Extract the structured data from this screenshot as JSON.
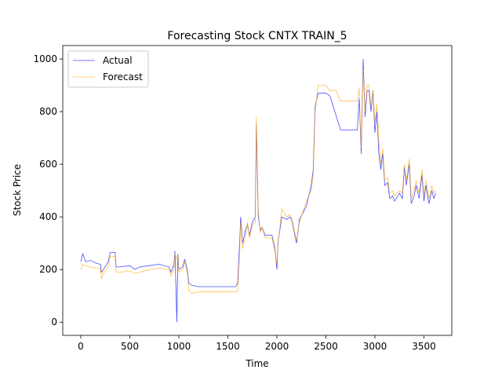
{
  "chart_data": {
    "type": "line",
    "title": "Forecasting Stock CNTX TRAIN_5",
    "xlabel": "Time",
    "ylabel": "Stock Price",
    "xlim": [
      -184,
      3784
    ],
    "ylim": [
      -50,
      1051
    ],
    "xticks": [
      0,
      500,
      1000,
      1500,
      2000,
      2500,
      3000,
      3500
    ],
    "yticks": [
      0,
      200,
      400,
      600,
      800,
      1000
    ],
    "legend": "upper left",
    "series": [
      {
        "name": "Actual",
        "color": "#0000ff",
        "x": [
          0,
          20,
          50,
          100,
          150,
          200,
          210,
          230,
          280,
          300,
          350,
          360,
          400,
          500,
          550,
          600,
          700,
          800,
          900,
          920,
          950,
          960,
          980,
          990,
          1000,
          1040,
          1060,
          1090,
          1100,
          1130,
          1200,
          1400,
          1580,
          1600,
          1620,
          1630,
          1650,
          1680,
          1700,
          1720,
          1750,
          1780,
          1790,
          1810,
          1830,
          1850,
          1880,
          1950,
          1980,
          2000,
          2010,
          2050,
          2100,
          2130,
          2150,
          2200,
          2230,
          2300,
          2350,
          2370,
          2390,
          2420,
          2500,
          2540,
          2600,
          2650,
          2700,
          2820,
          2840,
          2860,
          2880,
          2900,
          2920,
          2940,
          2960,
          2980,
          3000,
          3020,
          3040,
          3060,
          3080,
          3100,
          3130,
          3150,
          3180,
          3200,
          3250,
          3280,
          3300,
          3320,
          3350,
          3370,
          3400,
          3420,
          3450,
          3480,
          3500,
          3520,
          3550,
          3580,
          3600,
          3620
        ],
        "values": [
          230,
          260,
          230,
          235,
          225,
          220,
          190,
          200,
          230,
          265,
          265,
          210,
          210,
          215,
          200,
          210,
          215,
          220,
          210,
          190,
          220,
          270,
          0,
          260,
          200,
          210,
          240,
          190,
          150,
          140,
          135,
          135,
          135,
          150,
          300,
          400,
          300,
          350,
          370,
          330,
          380,
          400,
          750,
          400,
          350,
          360,
          330,
          330,
          280,
          200,
          300,
          400,
          390,
          400,
          390,
          300,
          390,
          440,
          520,
          580,
          820,
          870,
          870,
          860,
          790,
          730,
          730,
          730,
          850,
          640,
          1000,
          780,
          880,
          880,
          800,
          880,
          720,
          800,
          640,
          580,
          640,
          520,
          530,
          470,
          480,
          460,
          490,
          470,
          590,
          520,
          600,
          450,
          480,
          520,
          470,
          560,
          460,
          520,
          450,
          500,
          470,
          490
        ]
      },
      {
        "name": "Forecast",
        "color": "#ffa500",
        "x": [
          0,
          20,
          50,
          100,
          150,
          200,
          210,
          230,
          280,
          300,
          350,
          360,
          400,
          500,
          550,
          600,
          700,
          800,
          900,
          920,
          950,
          960,
          980,
          990,
          1000,
          1040,
          1060,
          1090,
          1100,
          1130,
          1200,
          1400,
          1580,
          1600,
          1620,
          1630,
          1650,
          1680,
          1700,
          1720,
          1750,
          1780,
          1790,
          1810,
          1830,
          1850,
          1880,
          1950,
          1980,
          2000,
          2010,
          2050,
          2100,
          2130,
          2150,
          2200,
          2230,
          2300,
          2350,
          2370,
          2390,
          2420,
          2500,
          2540,
          2600,
          2650,
          2700,
          2820,
          2840,
          2860,
          2880,
          2900,
          2920,
          2940,
          2960,
          2980,
          3000,
          3020,
          3040,
          3060,
          3080,
          3100,
          3130,
          3150,
          3180,
          3200,
          3250,
          3280,
          3300,
          3320,
          3350,
          3370,
          3400,
          3420,
          3450,
          3480,
          3500,
          3520,
          3550,
          3580,
          3600,
          3620
        ],
        "values": [
          200,
          220,
          215,
          210,
          205,
          205,
          165,
          185,
          210,
          250,
          250,
          190,
          190,
          195,
          185,
          190,
          200,
          205,
          200,
          175,
          205,
          260,
          240,
          250,
          190,
          200,
          230,
          180,
          120,
          110,
          115,
          115,
          115,
          120,
          260,
          380,
          280,
          330,
          380,
          320,
          370,
          380,
          780,
          420,
          340,
          360,
          320,
          320,
          270,
          220,
          290,
          430,
          400,
          410,
          395,
          310,
          380,
          460,
          500,
          560,
          800,
          900,
          900,
          880,
          880,
          840,
          840,
          840,
          890,
          660,
          960,
          800,
          900,
          900,
          820,
          880,
          760,
          830,
          680,
          600,
          660,
          540,
          550,
          490,
          500,
          480,
          500,
          490,
          600,
          540,
          620,
          470,
          500,
          540,
          490,
          580,
          480,
          540,
          470,
          520,
          490,
          500
        ]
      }
    ]
  }
}
